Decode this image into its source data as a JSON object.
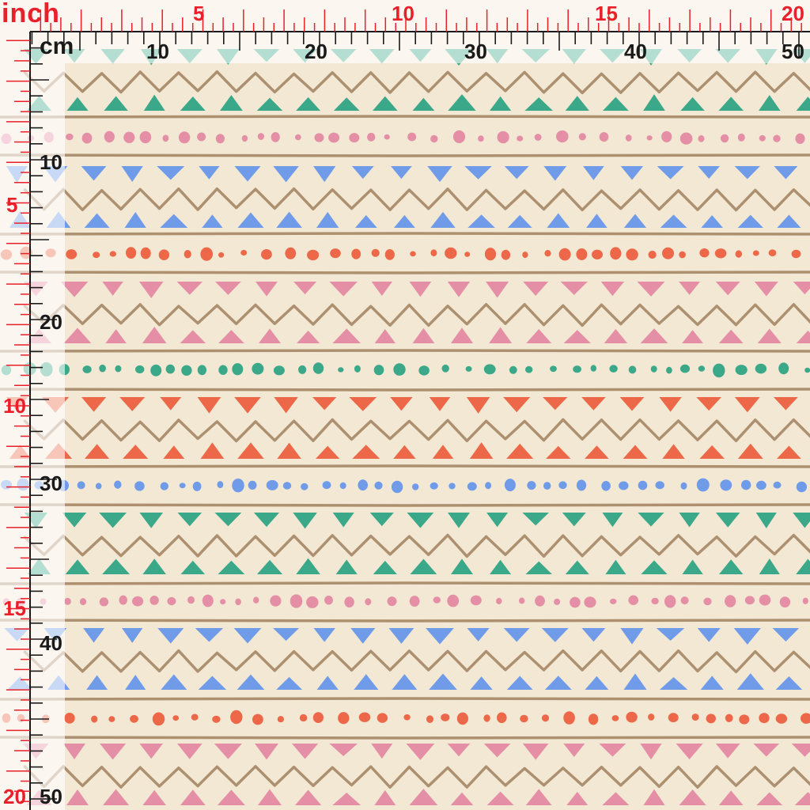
{
  "ruler": {
    "inch_label": "inch",
    "cm_label": "cm",
    "inch_ticks_top": [
      "5",
      "10",
      "15",
      "20"
    ],
    "cm_ticks_top": [
      "10",
      "20",
      "30",
      "40",
      "50"
    ],
    "inch_ticks_left": [
      "5",
      "10",
      "15",
      "20"
    ],
    "cm_ticks_left": [
      "10",
      "20",
      "30",
      "40",
      "50"
    ],
    "colors": {
      "inch": "#e8202a",
      "cm": "#1a1a1a"
    }
  },
  "pattern": {
    "background": "#f3e8d4",
    "line_color": "#ad9070",
    "palette": {
      "green": "#3aa889",
      "blue": "#6f9be8",
      "pink": "#e48fa6",
      "coral": "#ec6848"
    },
    "motif_order": [
      "zigzag-with-triangles",
      "dots"
    ],
    "color_sequence": [
      "green",
      "pink",
      "blue",
      "coral",
      "pink",
      "green",
      "coral",
      "blue"
    ]
  }
}
